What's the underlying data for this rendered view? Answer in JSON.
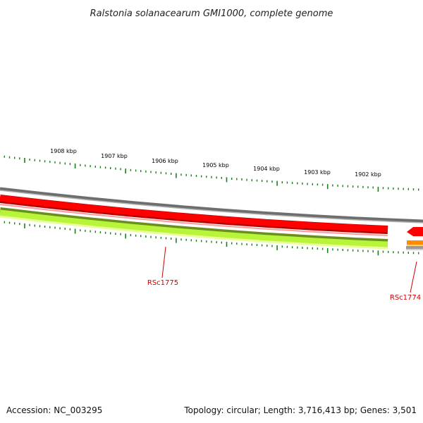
{
  "title": "Ralstonia solanacearum GMI1000, complete genome",
  "accession": "Accession: NC_003295",
  "summary": "Topology: circular; Length: 3,716,413 bp; Genes: 3,501",
  "kbp_ticks": [
    "1908 kbp",
    "1907 kbp",
    "1906 kbp",
    "1905 kbp",
    "1904 kbp",
    "1903 kbp",
    "1902 kbp"
  ],
  "genes": [
    {
      "name": "RSc1775"
    },
    {
      "name": "RSc1774"
    }
  ],
  "colors": {
    "backbone": "#7a7a7a",
    "gene_forward": "#ff0000",
    "gene_forward_edge": "#b20000",
    "gene_reverse": "#b8f53a",
    "gene_reverse_edge": "#6b8f1f",
    "tick": "#1a7f1a",
    "orange_feature": "#ff8c00",
    "label": "#cc0000"
  }
}
